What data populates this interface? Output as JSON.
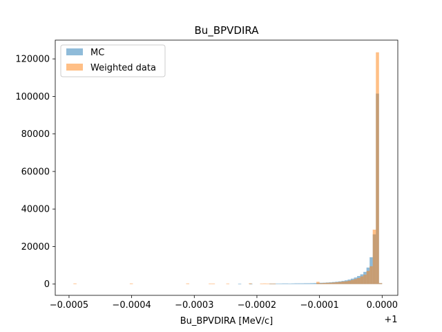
{
  "chart_data": {
    "type": "histogram",
    "title": "Bu_BPVDIRA",
    "xlabel": "Bu_BPVDIRA [MeV/c]",
    "ylabel": "",
    "x_offset_label": "+1",
    "xlim": [
      -0.000522,
      2.5e-05
    ],
    "ylim": [
      -6000,
      130000
    ],
    "xticks": [
      -0.0005,
      -0.0004,
      -0.0003,
      -0.0002,
      -0.0001,
      0.0
    ],
    "xtick_labels": [
      "−0.0005",
      "−0.0004",
      "−0.0003",
      "−0.0002",
      "−0.0001",
      "0.0000"
    ],
    "yticks": [
      0,
      20000,
      40000,
      60000,
      80000,
      100000,
      120000
    ],
    "ytick_labels": [
      "0",
      "20000",
      "40000",
      "60000",
      "80000",
      "100000",
      "120000"
    ],
    "grid": false,
    "legend_position": "upper-left",
    "series": [
      {
        "name": "MC",
        "color": "#1f77b4",
        "alpha": 0.5,
        "bins": [
          {
            "x0": -0.00023,
            "x1": -0.000225,
            "y": 150
          },
          {
            "x0": -0.000212,
            "x1": -0.000207,
            "y": 150
          },
          {
            "x0": -0.00018,
            "x1": -0.000175,
            "y": 200
          },
          {
            "x0": -0.000175,
            "x1": -0.00017,
            "y": 200
          },
          {
            "x0": -0.00017,
            "x1": -0.000165,
            "y": 300
          },
          {
            "x0": -0.000165,
            "x1": -0.00016,
            "y": 300
          },
          {
            "x0": -0.00016,
            "x1": -0.000155,
            "y": 350
          },
          {
            "x0": -0.000155,
            "x1": -0.00015,
            "y": 350
          },
          {
            "x0": -0.00015,
            "x1": -0.000145,
            "y": 300
          },
          {
            "x0": -0.000145,
            "x1": -0.00014,
            "y": 350
          },
          {
            "x0": -0.00014,
            "x1": -0.000135,
            "y": 400
          },
          {
            "x0": -0.000135,
            "x1": -0.00013,
            "y": 400
          },
          {
            "x0": -0.00013,
            "x1": -0.000125,
            "y": 400
          },
          {
            "x0": -0.000125,
            "x1": -0.00012,
            "y": 450
          },
          {
            "x0": -0.00012,
            "x1": -0.000115,
            "y": 450
          },
          {
            "x0": -0.000115,
            "x1": -0.00011,
            "y": 500
          },
          {
            "x0": -0.00011,
            "x1": -0.000105,
            "y": 550
          },
          {
            "x0": -0.000105,
            "x1": -0.0001,
            "y": 600
          },
          {
            "x0": -0.0001,
            "x1": -9.5e-05,
            "y": 700
          },
          {
            "x0": -9.5e-05,
            "x1": -9e-05,
            "y": 750
          },
          {
            "x0": -9e-05,
            "x1": -8.5e-05,
            "y": 850
          },
          {
            "x0": -8.5e-05,
            "x1": -8e-05,
            "y": 950
          },
          {
            "x0": -8e-05,
            "x1": -7.5e-05,
            "y": 1100
          },
          {
            "x0": -7.5e-05,
            "x1": -7e-05,
            "y": 1250
          },
          {
            "x0": -7e-05,
            "x1": -6.5e-05,
            "y": 1450
          },
          {
            "x0": -6.5e-05,
            "x1": -6e-05,
            "y": 1700
          },
          {
            "x0": -6e-05,
            "x1": -5.5e-05,
            "y": 2000
          },
          {
            "x0": -5.5e-05,
            "x1": -5e-05,
            "y": 2400
          },
          {
            "x0": -5e-05,
            "x1": -4.5e-05,
            "y": 2900
          },
          {
            "x0": -4.5e-05,
            "x1": -4e-05,
            "y": 3500
          },
          {
            "x0": -4e-05,
            "x1": -3.5e-05,
            "y": 4300
          },
          {
            "x0": -3.5e-05,
            "x1": -3e-05,
            "y": 5200
          },
          {
            "x0": -3e-05,
            "x1": -2.5e-05,
            "y": 6500
          },
          {
            "x0": -2.5e-05,
            "x1": -2e-05,
            "y": 8800
          },
          {
            "x0": -2e-05,
            "x1": -1.5e-05,
            "y": 14300
          },
          {
            "x0": -1.5e-05,
            "x1": -1e-05,
            "y": 26500
          },
          {
            "x0": -1e-05,
            "x1": -5e-06,
            "y": 101500
          },
          {
            "x0": -5e-06,
            "x1": 0.0,
            "y": 500
          }
        ]
      },
      {
        "name": "Weighted data",
        "color": "#ff7f0e",
        "alpha": 0.5,
        "bins": [
          {
            "x0": -0.000493,
            "x1": -0.000488,
            "y": 350
          },
          {
            "x0": -0.000403,
            "x1": -0.000398,
            "y": 350
          },
          {
            "x0": -0.000313,
            "x1": -0.000308,
            "y": 350
          },
          {
            "x0": -0.000277,
            "x1": -0.000272,
            "y": 300
          },
          {
            "x0": -0.000272,
            "x1": -0.000267,
            "y": 300
          },
          {
            "x0": -0.000249,
            "x1": -0.000244,
            "y": 300
          },
          {
            "x0": -0.000213,
            "x1": -0.000208,
            "y": 400
          },
          {
            "x0": -0.000195,
            "x1": -0.00019,
            "y": 300
          },
          {
            "x0": -0.00019,
            "x1": -0.000185,
            "y": 350
          },
          {
            "x0": -0.000185,
            "x1": -0.00018,
            "y": 300
          },
          {
            "x0": -0.00018,
            "x1": -0.000175,
            "y": 250
          },
          {
            "x0": -0.000175,
            "x1": -0.00017,
            "y": 250
          },
          {
            "x0": -0.000105,
            "x1": -0.0001,
            "y": 1200
          },
          {
            "x0": -0.0001,
            "x1": -9.5e-05,
            "y": 500
          },
          {
            "x0": -9.5e-05,
            "x1": -9e-05,
            "y": 600
          },
          {
            "x0": -9e-05,
            "x1": -8.5e-05,
            "y": 700
          },
          {
            "x0": -8.5e-05,
            "x1": -8e-05,
            "y": 750
          },
          {
            "x0": -8e-05,
            "x1": -7.5e-05,
            "y": 850
          },
          {
            "x0": -7.5e-05,
            "x1": -7e-05,
            "y": 1000
          },
          {
            "x0": -7e-05,
            "x1": -6.5e-05,
            "y": 1150
          },
          {
            "x0": -6.5e-05,
            "x1": -6e-05,
            "y": 1350
          },
          {
            "x0": -6e-05,
            "x1": -5.5e-05,
            "y": 1500
          },
          {
            "x0": -5.5e-05,
            "x1": -5e-05,
            "y": 1800
          },
          {
            "x0": -5e-05,
            "x1": -4.5e-05,
            "y": 2200
          },
          {
            "x0": -4.5e-05,
            "x1": -4e-05,
            "y": 2700
          },
          {
            "x0": -4e-05,
            "x1": -3.5e-05,
            "y": 3200
          },
          {
            "x0": -3.5e-05,
            "x1": -3e-05,
            "y": 4100
          },
          {
            "x0": -3e-05,
            "x1": -2.5e-05,
            "y": 5000
          },
          {
            "x0": -2.5e-05,
            "x1": -2e-05,
            "y": 7000
          },
          {
            "x0": -2e-05,
            "x1": -1.5e-05,
            "y": 9500
          },
          {
            "x0": -1.5e-05,
            "x1": -1e-05,
            "y": 29000
          },
          {
            "x0": -1e-05,
            "x1": -5e-06,
            "y": 123500
          },
          {
            "x0": -5e-06,
            "x1": 0.0,
            "y": 500
          }
        ]
      }
    ]
  }
}
